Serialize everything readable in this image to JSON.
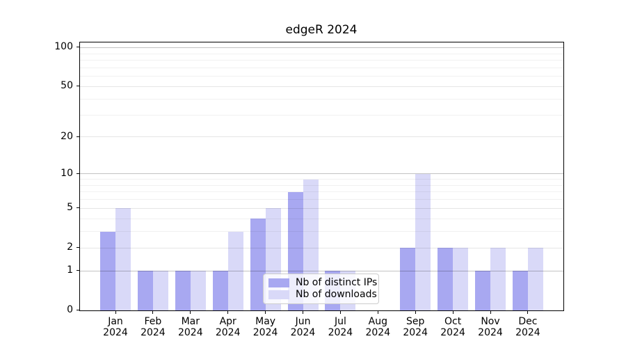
{
  "chart_data": {
    "type": "bar",
    "title": "edgeR 2024",
    "x_axis": {
      "months": [
        "Jan",
        "Feb",
        "Mar",
        "Apr",
        "May",
        "Jun",
        "Jul",
        "Aug",
        "Sep",
        "Oct",
        "Nov",
        "Dec"
      ],
      "year": "2024"
    },
    "series": [
      {
        "name": "Nb of distinct IPs",
        "color": "#a8a8f1",
        "values": [
          3,
          1,
          1,
          1,
          4,
          7,
          1,
          0,
          2,
          2,
          1,
          1
        ]
      },
      {
        "name": "Nb of downloads",
        "color": "#d9d9f8",
        "values": [
          5,
          1,
          1,
          3,
          5,
          9,
          1,
          0,
          10,
          2,
          2,
          2
        ]
      }
    ],
    "y_axis": {
      "scale": "log1p",
      "ylim": [
        0,
        112
      ],
      "tick_labels": [
        0,
        1,
        2,
        5,
        10,
        20,
        50,
        100
      ],
      "gridlines": {
        "decade": [
          1,
          10,
          100
        ],
        "mid": [
          2,
          5,
          20,
          50
        ],
        "minor": [
          3,
          4,
          6,
          7,
          8,
          9,
          30,
          40,
          60,
          70,
          80,
          90
        ]
      },
      "grid_colors": {
        "decade": "rgba(0,0,0,0.24)",
        "mid": "rgba(0,0,0,0.10)",
        "minor": "rgba(0,0,0,0.055)"
      }
    },
    "legend": {
      "position": "lower center"
    }
  }
}
